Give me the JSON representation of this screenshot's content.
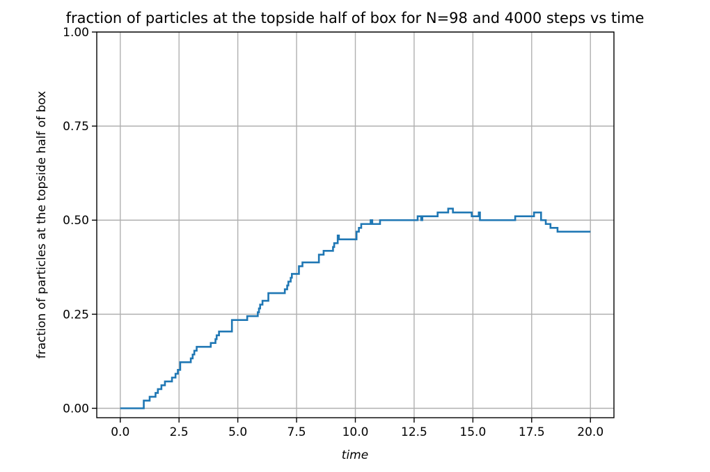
{
  "chart_data": {
    "type": "line",
    "title": "fraction of particles at the topside half of box for N=98 and 4000 steps vs time",
    "xlabel": "time",
    "ylabel": "fraction of particles at the topside half of box",
    "xlim": [
      -1.0,
      21.0
    ],
    "ylim": [
      -0.025,
      1.0
    ],
    "xticks": [
      0.0,
      2.5,
      5.0,
      7.5,
      10.0,
      12.5,
      15.0,
      17.5,
      20.0
    ],
    "xtick_labels": [
      "0.0",
      "2.5",
      "5.0",
      "7.5",
      "10.0",
      "12.5",
      "15.0",
      "17.5",
      "20.0"
    ],
    "yticks": [
      0.0,
      0.25,
      0.5,
      0.75,
      1.0
    ],
    "ytick_labels": [
      "0.00",
      "0.25",
      "0.50",
      "0.75",
      "1.00"
    ],
    "grid": true,
    "step": "post",
    "series": [
      {
        "color": "#1f77b4",
        "x": [
          0.0,
          1.0,
          1.25,
          1.5,
          1.6,
          1.75,
          1.9,
          2.2,
          2.35,
          2.45,
          2.55,
          3.0,
          3.08,
          3.15,
          3.25,
          3.85,
          4.05,
          4.1,
          4.2,
          4.75,
          5.4,
          5.85,
          5.9,
          5.95,
          6.05,
          6.3,
          7.0,
          7.1,
          7.15,
          7.25,
          7.3,
          7.6,
          7.75,
          8.45,
          8.65,
          9.05,
          9.1,
          9.25,
          9.3,
          10.05,
          10.15,
          10.25,
          10.3,
          10.65,
          10.72,
          11.05,
          12.65,
          12.8,
          12.85,
          13.5,
          13.95,
          14.15,
          14.95,
          15.25,
          15.3,
          16.8,
          17.6,
          17.9,
          18.1,
          18.3,
          18.6,
          20.0
        ],
        "y": [
          0.0,
          0.0204,
          0.0306,
          0.0408,
          0.051,
          0.0612,
          0.0714,
          0.0816,
          0.0918,
          0.102,
          0.1224,
          0.1327,
          0.1429,
          0.1531,
          0.1633,
          0.1735,
          0.1837,
          0.1939,
          0.2041,
          0.2347,
          0.2449,
          0.2551,
          0.2653,
          0.2755,
          0.2857,
          0.3061,
          0.3163,
          0.3265,
          0.3367,
          0.3469,
          0.3571,
          0.3776,
          0.3878,
          0.4082,
          0.4184,
          0.4286,
          0.4388,
          0.4592,
          0.449,
          0.4694,
          0.4796,
          0.4898,
          0.4898,
          0.5,
          0.4898,
          0.5,
          0.5102,
          0.5,
          0.5102,
          0.5204,
          0.5306,
          0.5204,
          0.5102,
          0.5204,
          0.5,
          0.5102,
          0.5204,
          0.5,
          0.4898,
          0.4796,
          0.4694,
          0.4694
        ]
      }
    ]
  }
}
